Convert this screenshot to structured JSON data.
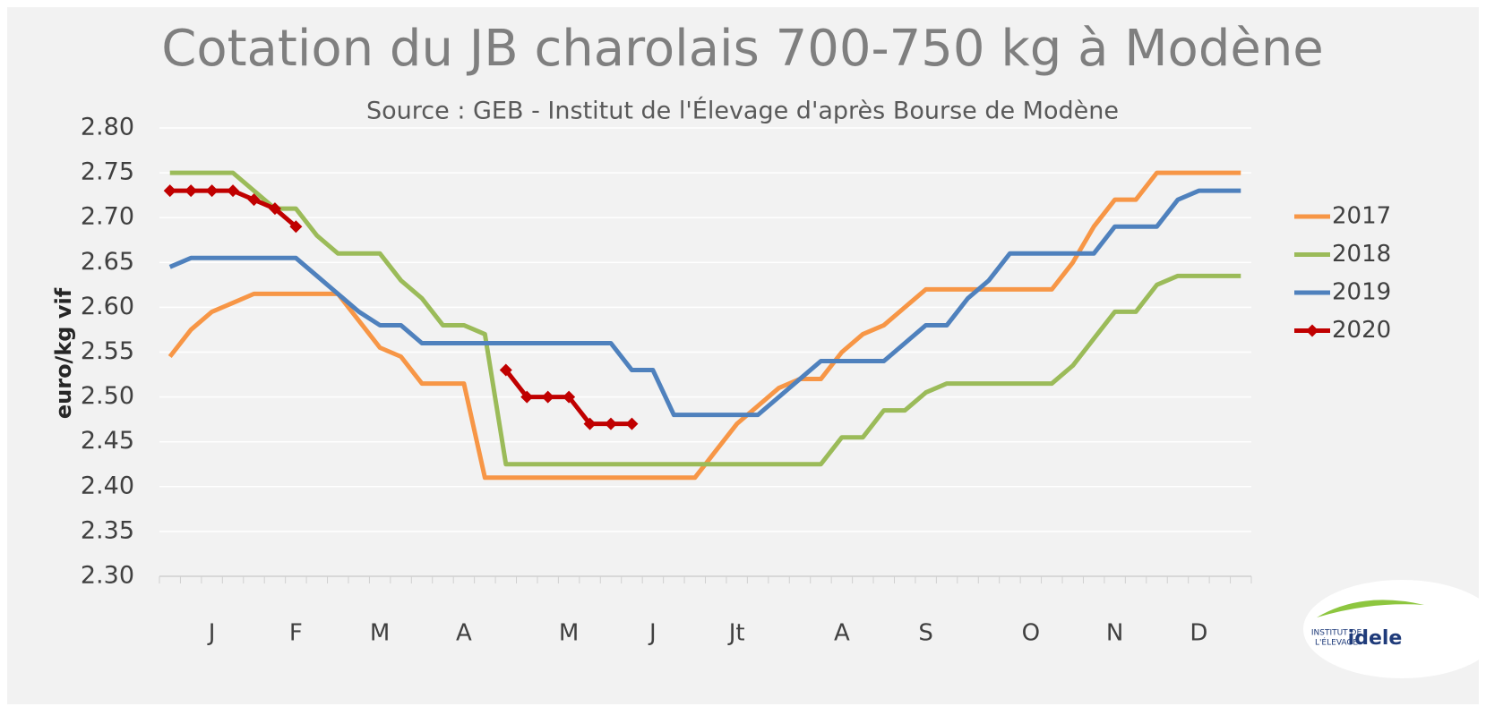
{
  "chart_data": {
    "type": "line",
    "title": "Cotation du JB charolais 700-750 kg à Modène",
    "subtitle": "Source : GEB - Institut de l'Élevage d'après Bourse de Modène",
    "y_label": "euro/kg vif",
    "categories": [
      null,
      null,
      "J",
      null,
      null,
      null,
      "F",
      null,
      null,
      null,
      "M",
      null,
      null,
      null,
      "A",
      null,
      null,
      null,
      null,
      "M",
      null,
      null,
      null,
      "J",
      null,
      null,
      null,
      "Jt",
      null,
      null,
      null,
      null,
      "A",
      null,
      null,
      null,
      "S",
      null,
      null,
      null,
      null,
      "O",
      null,
      null,
      null,
      "N",
      null,
      null,
      null,
      "D",
      null,
      null
    ],
    "ylim": [
      2.3,
      2.8
    ],
    "yticks": [
      {
        "value": 2.3,
        "label": "2.30"
      },
      {
        "value": 2.35,
        "label": "2.35"
      },
      {
        "value": 2.4,
        "label": "2.40"
      },
      {
        "value": 2.45,
        "label": "2.45"
      },
      {
        "value": 2.5,
        "label": "2.50"
      },
      {
        "value": 2.55,
        "label": "2.55"
      },
      {
        "value": 2.6,
        "label": "2.60"
      },
      {
        "value": 2.65,
        "label": "2.65"
      },
      {
        "value": 2.7,
        "label": "2.70"
      },
      {
        "value": 2.75,
        "label": "2.75"
      },
      {
        "value": 2.8,
        "label": "2.80"
      }
    ],
    "grid": true,
    "legend": "right",
    "series": [
      {
        "name": "2017",
        "color": "#f79646",
        "marker": false,
        "values": [
          2.545,
          2.575,
          2.595,
          2.605,
          2.615,
          2.615,
          2.615,
          2.615,
          2.615,
          2.585,
          2.555,
          2.545,
          2.515,
          2.515,
          2.515,
          2.41,
          2.41,
          2.41,
          2.41,
          2.41,
          2.41,
          2.41,
          2.41,
          2.41,
          2.41,
          2.41,
          2.44,
          2.47,
          2.49,
          2.51,
          2.52,
          2.52,
          2.55,
          2.57,
          2.58,
          2.6,
          2.62,
          2.62,
          2.62,
          2.62,
          2.62,
          2.62,
          2.62,
          2.65,
          2.69,
          2.72,
          2.72,
          2.75,
          2.75,
          2.75,
          2.75,
          2.75
        ]
      },
      {
        "name": "2018",
        "color": "#9bbb59",
        "marker": false,
        "values": [
          2.75,
          2.75,
          2.75,
          2.75,
          2.73,
          2.71,
          2.71,
          2.68,
          2.66,
          2.66,
          2.66,
          2.63,
          2.61,
          2.58,
          2.58,
          2.57,
          2.425,
          2.425,
          2.425,
          2.425,
          2.425,
          2.425,
          2.425,
          2.425,
          2.425,
          2.425,
          2.425,
          2.425,
          2.425,
          2.425,
          2.425,
          2.425,
          2.455,
          2.455,
          2.485,
          2.485,
          2.505,
          2.515,
          2.515,
          2.515,
          2.515,
          2.515,
          2.515,
          2.535,
          2.565,
          2.595,
          2.595,
          2.625,
          2.635,
          2.635,
          2.635,
          2.635
        ]
      },
      {
        "name": "2019",
        "color": "#4f81bd",
        "marker": false,
        "values": [
          2.645,
          2.655,
          2.655,
          2.655,
          2.655,
          2.655,
          2.655,
          2.635,
          2.615,
          2.595,
          2.58,
          2.58,
          2.56,
          2.56,
          2.56,
          2.56,
          2.56,
          2.56,
          2.56,
          2.56,
          2.56,
          2.56,
          2.53,
          2.53,
          2.48,
          2.48,
          2.48,
          2.48,
          2.48,
          2.5,
          2.52,
          2.54,
          2.54,
          2.54,
          2.54,
          2.56,
          2.58,
          2.58,
          2.61,
          2.63,
          2.66,
          2.66,
          2.66,
          2.66,
          2.66,
          2.69,
          2.69,
          2.69,
          2.72,
          2.73,
          2.73,
          2.73
        ]
      },
      {
        "name": "2020",
        "color": "#c00000",
        "marker": true,
        "values": [
          2.73,
          2.73,
          2.73,
          2.73,
          2.72,
          2.71,
          2.69,
          null,
          null,
          null,
          null,
          null,
          null,
          null,
          null,
          null,
          2.53,
          2.5,
          2.5,
          2.5,
          2.47,
          2.47,
          2.47,
          null,
          null,
          null,
          null,
          null,
          null,
          null,
          null,
          null,
          null,
          null,
          null,
          null,
          null,
          null,
          null,
          null,
          null,
          null,
          null,
          null,
          null,
          null,
          null,
          null,
          null,
          null,
          null,
          null
        ]
      }
    ]
  },
  "logo": {
    "line1": "INSTITUT DE",
    "line2": "L'ÉLEVAGE",
    "brand": "idele"
  }
}
